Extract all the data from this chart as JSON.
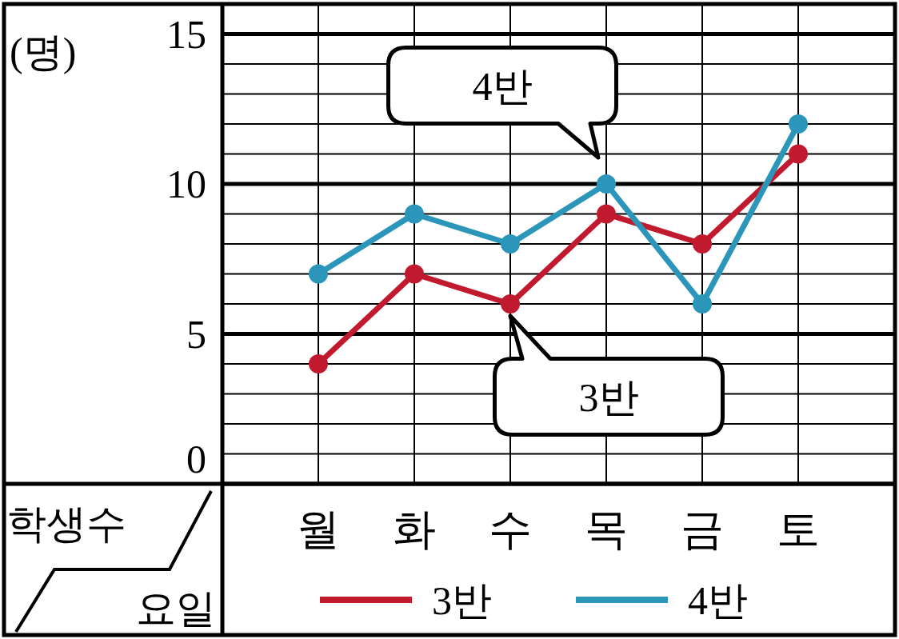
{
  "chart_data": {
    "type": "line",
    "categories": [
      "월",
      "화",
      "수",
      "목",
      "금",
      "토"
    ],
    "series": [
      {
        "name": "3반",
        "color": "#c11a2e",
        "values": [
          4,
          7,
          6,
          9,
          8,
          11
        ]
      },
      {
        "name": "4반",
        "color": "#2b96b9",
        "values": [
          7,
          9,
          8,
          10,
          6,
          12
        ]
      }
    ],
    "ylim": [
      0,
      16
    ],
    "yticks": [
      0,
      {
        "value": 1,
        "label": null
      },
      {
        "value": 2,
        "label": null
      },
      {
        "value": 3,
        "label": null
      },
      {
        "value": 4,
        "label": null
      },
      5,
      {
        "value": 6,
        "label": null
      },
      {
        "value": 7,
        "label": null
      },
      {
        "value": 8,
        "label": null
      },
      {
        "value": 9,
        "label": null
      },
      10,
      {
        "value": 11,
        "label": null
      },
      {
        "value": 12,
        "label": null
      },
      {
        "value": 13,
        "label": null
      },
      {
        "value": 14,
        "label": null
      },
      15
    ],
    "ylabel": "학생수",
    "xlabel": "요일",
    "annotations": [
      "(명)",
      {
        "text": "4반",
        "x": "목",
        "y": 10
      },
      {
        "text": "3반",
        "x": "수",
        "y": 6
      }
    ],
    "grid": true,
    "legend": "bottom",
    "marker": "circle",
    "line_style": "solid"
  }
}
